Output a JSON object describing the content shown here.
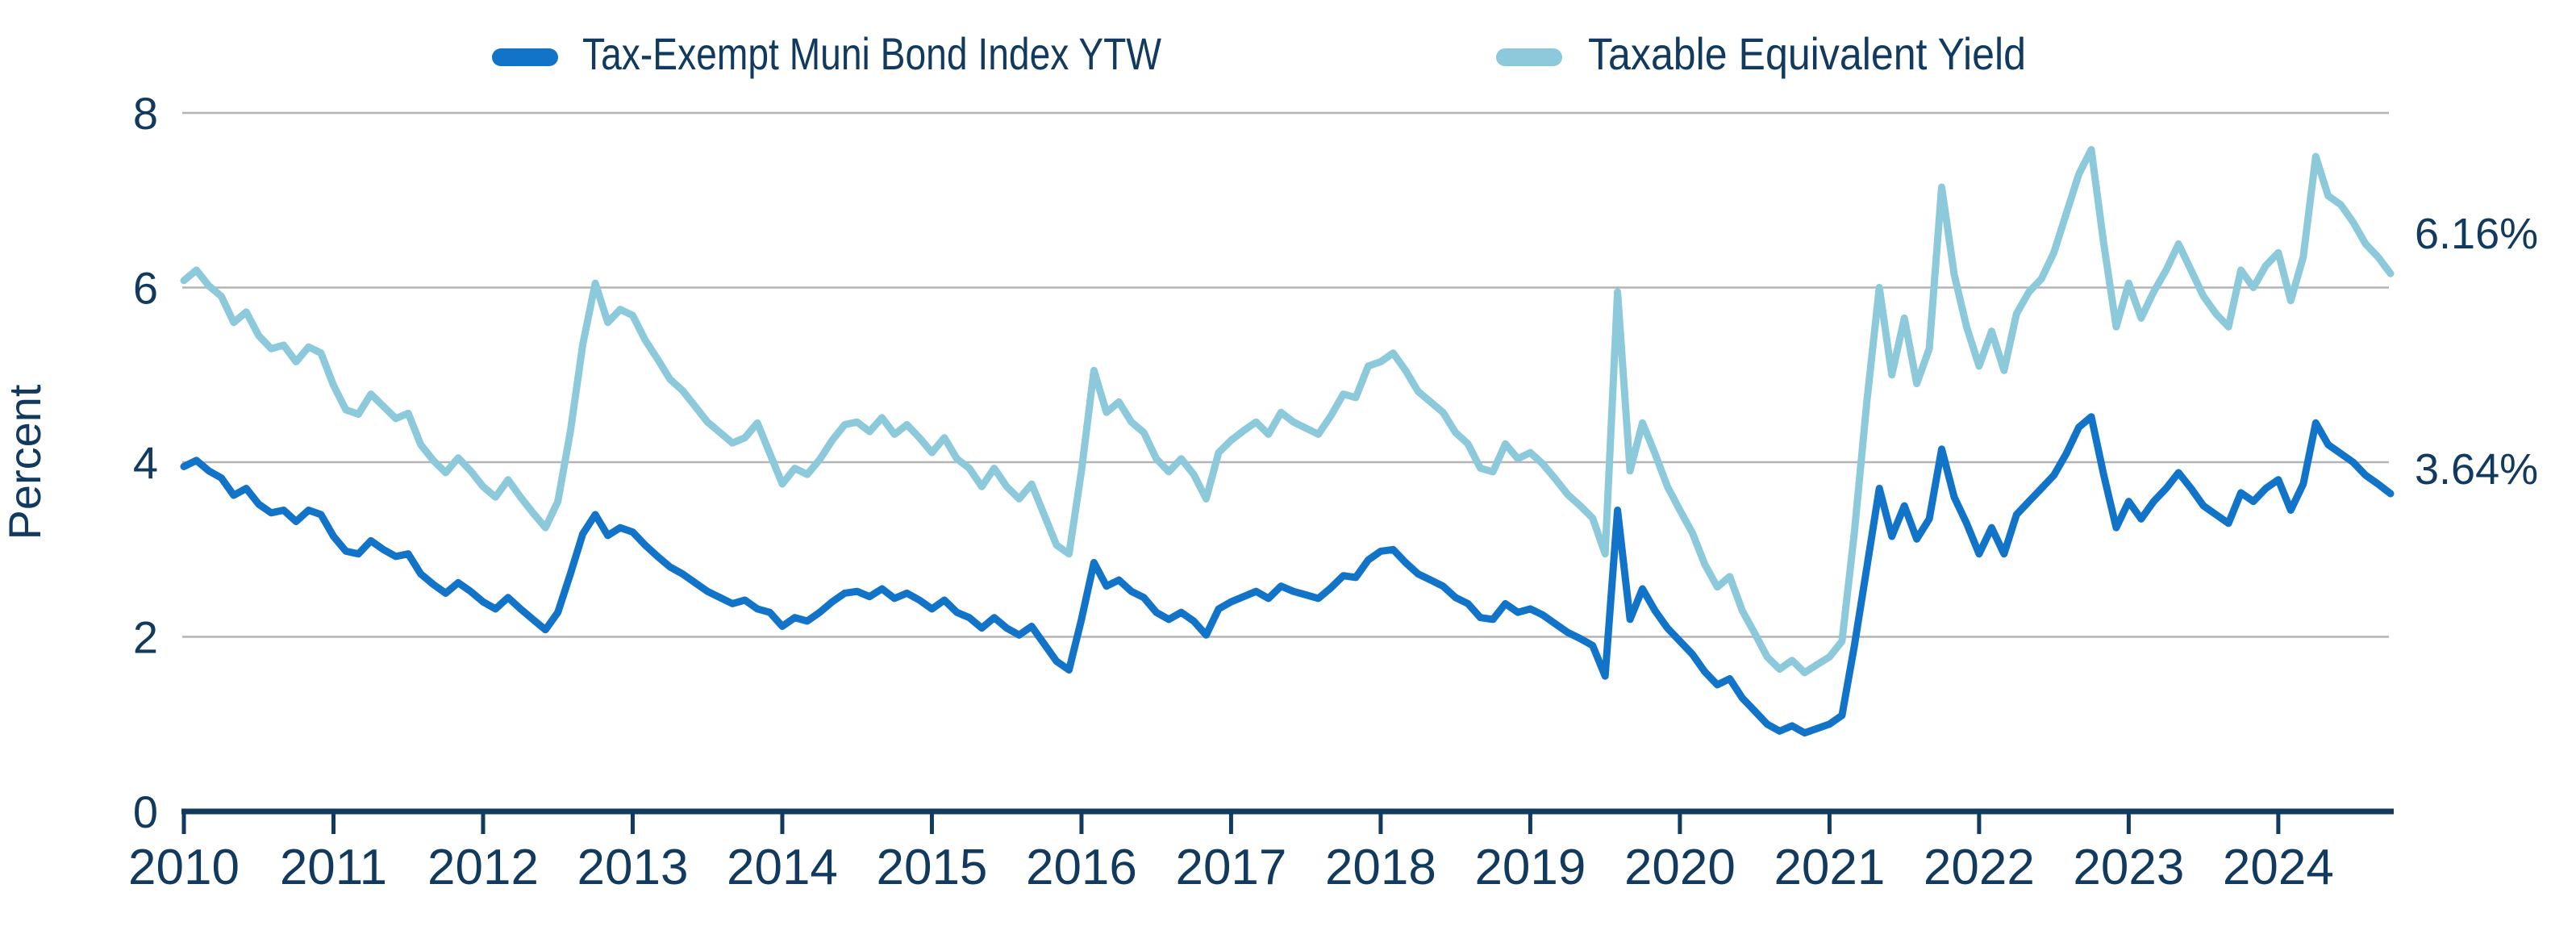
{
  "chart_data": {
    "type": "line",
    "title": "",
    "ylabel": "Percent",
    "ylim": [
      0,
      8
    ],
    "y_ticks": [
      0,
      2,
      4,
      6,
      8
    ],
    "grid": true,
    "legend_position": "top",
    "x_start_year": 2010,
    "points_per_year": 12,
    "x_tick_labels": [
      "2010",
      "2011",
      "2012",
      "2013",
      "2014",
      "2015",
      "2016",
      "2017",
      "2018",
      "2019",
      "2020",
      "2021",
      "2022",
      "2023",
      "2024"
    ],
    "series": [
      {
        "name": "Taxable Equivalent Yield",
        "color": "#8ccadb",
        "end_label": "6.16%",
        "values": [
          6.08,
          6.2,
          6.02,
          5.9,
          5.6,
          5.72,
          5.45,
          5.3,
          5.34,
          5.15,
          5.32,
          5.25,
          4.88,
          4.6,
          4.55,
          4.78,
          4.64,
          4.5,
          4.56,
          4.2,
          4.02,
          3.88,
          4.05,
          3.9,
          3.72,
          3.6,
          3.8,
          3.6,
          3.42,
          3.25,
          3.55,
          4.35,
          5.35,
          6.05,
          5.6,
          5.75,
          5.68,
          5.4,
          5.18,
          4.95,
          4.82,
          4.64,
          4.46,
          4.34,
          4.22,
          4.28,
          4.45,
          4.1,
          3.75,
          3.93,
          3.86,
          4.03,
          4.25,
          4.43,
          4.46,
          4.35,
          4.51,
          4.32,
          4.43,
          4.28,
          4.11,
          4.28,
          4.04,
          3.93,
          3.72,
          3.93,
          3.72,
          3.58,
          3.75,
          3.4,
          3.05,
          2.95,
          3.9,
          5.05,
          4.57,
          4.69,
          4.46,
          4.34,
          4.04,
          3.89,
          4.04,
          3.86,
          3.58,
          4.11,
          4.25,
          4.36,
          4.46,
          4.32,
          4.57,
          4.46,
          4.39,
          4.32,
          4.53,
          4.78,
          4.74,
          5.1,
          5.15,
          5.25,
          5.05,
          4.81,
          4.69,
          4.57,
          4.34,
          4.21,
          3.93,
          3.89,
          4.21,
          4.04,
          4.11,
          3.98,
          3.81,
          3.63,
          3.5,
          3.36,
          2.95,
          5.95,
          3.9,
          4.45,
          4.1,
          3.72,
          3.45,
          3.19,
          2.83,
          2.57,
          2.69,
          2.3,
          2.04,
          1.77,
          1.63,
          1.73,
          1.59,
          1.68,
          1.77,
          1.95,
          3.2,
          4.7,
          6.0,
          5.0,
          5.65,
          4.9,
          5.3,
          7.15,
          6.15,
          5.55,
          5.1,
          5.5,
          5.05,
          5.7,
          5.95,
          6.1,
          6.4,
          6.85,
          7.3,
          7.58,
          6.5,
          5.55,
          6.05,
          5.65,
          5.95,
          6.2,
          6.5,
          6.2,
          5.9,
          5.7,
          5.55,
          6.2,
          6.0,
          6.25,
          6.4,
          5.85,
          6.35,
          7.5,
          7.05,
          6.95,
          6.75,
          6.5,
          6.35,
          6.16
        ]
      },
      {
        "name": "Tax-Exempt Muni Bond Index YTW",
        "color": "#1274c8",
        "end_label": "3.64%",
        "values": [
          3.95,
          4.02,
          3.9,
          3.82,
          3.62,
          3.7,
          3.52,
          3.42,
          3.45,
          3.32,
          3.45,
          3.4,
          3.15,
          2.98,
          2.95,
          3.1,
          3.0,
          2.92,
          2.95,
          2.72,
          2.6,
          2.5,
          2.62,
          2.52,
          2.4,
          2.32,
          2.45,
          2.32,
          2.2,
          2.08,
          2.28,
          2.72,
          3.18,
          3.4,
          3.16,
          3.25,
          3.2,
          3.05,
          2.92,
          2.8,
          2.72,
          2.62,
          2.52,
          2.45,
          2.38,
          2.42,
          2.32,
          2.28,
          2.12,
          2.22,
          2.18,
          2.28,
          2.4,
          2.5,
          2.52,
          2.46,
          2.55,
          2.44,
          2.5,
          2.42,
          2.32,
          2.42,
          2.28,
          2.22,
          2.1,
          2.22,
          2.1,
          2.02,
          2.12,
          1.92,
          1.72,
          1.62,
          2.2,
          2.85,
          2.58,
          2.65,
          2.52,
          2.45,
          2.28,
          2.2,
          2.28,
          2.18,
          2.02,
          2.32,
          2.4,
          2.46,
          2.52,
          2.44,
          2.58,
          2.52,
          2.48,
          2.44,
          2.56,
          2.7,
          2.68,
          2.88,
          2.98,
          3.0,
          2.85,
          2.72,
          2.65,
          2.58,
          2.45,
          2.38,
          2.22,
          2.2,
          2.38,
          2.28,
          2.32,
          2.25,
          2.15,
          2.05,
          1.98,
          1.9,
          1.55,
          3.45,
          2.2,
          2.55,
          2.3,
          2.1,
          1.95,
          1.8,
          1.6,
          1.45,
          1.52,
          1.3,
          1.15,
          1.0,
          0.92,
          0.98,
          0.9,
          0.95,
          1.0,
          1.1,
          1.9,
          2.8,
          3.7,
          3.15,
          3.5,
          3.12,
          3.35,
          4.15,
          3.6,
          3.3,
          2.95,
          3.25,
          2.95,
          3.4,
          3.55,
          3.7,
          3.85,
          4.1,
          4.4,
          4.52,
          3.85,
          3.25,
          3.55,
          3.35,
          3.55,
          3.7,
          3.88,
          3.7,
          3.5,
          3.4,
          3.3,
          3.65,
          3.55,
          3.7,
          3.8,
          3.45,
          3.75,
          4.45,
          4.2,
          4.1,
          4.0,
          3.85,
          3.75,
          3.64
        ]
      }
    ],
    "legend": [
      {
        "label": "Tax-Exempt Muni Bond Index YTW",
        "color": "#1274c8"
      },
      {
        "label": "Taxable Equivalent Yield",
        "color": "#8ccadb"
      }
    ]
  },
  "colors": {
    "dark_blue": "#1274c8",
    "light_blue": "#8ccadb",
    "navy_text": "#123a5e",
    "gridline": "#b4b4b6",
    "background": "#ffffff"
  }
}
